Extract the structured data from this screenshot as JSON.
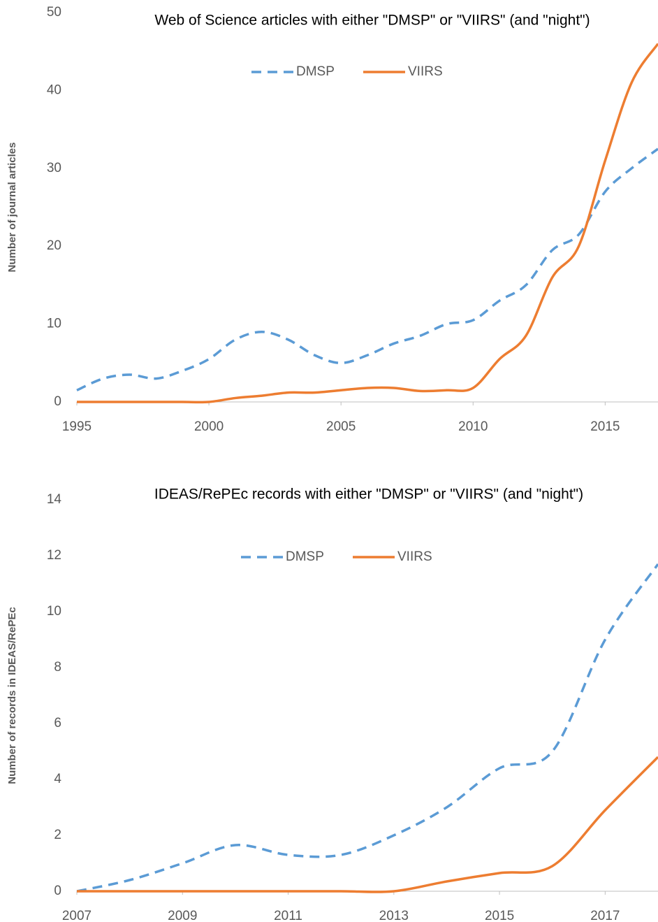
{
  "chart_data": [
    {
      "type": "line",
      "title": "Web of Science articles with either \"DMSP\" or \"VIIRS\" (and \"night\")",
      "y_label": "Number of journal articles",
      "x": [
        1995,
        1996,
        1997,
        1998,
        1999,
        2000,
        2001,
        2002,
        2003,
        2004,
        2005,
        2006,
        2007,
        2008,
        2009,
        2010,
        2011,
        2012,
        2013,
        2014,
        2015,
        2016,
        2017
      ],
      "series": [
        {
          "name": "DMSP",
          "color": "#5b9bd5",
          "dashed": true,
          "values": [
            1.5,
            3,
            3.5,
            3,
            4,
            5.5,
            8,
            9,
            8,
            6,
            5,
            6,
            7.5,
            8.5,
            10,
            10.5,
            13,
            15,
            19.5,
            21.5,
            27,
            30,
            32.5
          ]
        },
        {
          "name": "VIIRS",
          "color": "#ed7d31",
          "dashed": false,
          "values": [
            0,
            0,
            0,
            0,
            0,
            0,
            0.5,
            0.8,
            1.2,
            1.2,
            1.5,
            1.8,
            1.8,
            1.4,
            1.5,
            1.8,
            5.5,
            8.5,
            16,
            20,
            31,
            41,
            46
          ]
        }
      ],
      "xlim": [
        1995,
        2017
      ],
      "xticks": [
        1995,
        2000,
        2005,
        2010,
        2015
      ],
      "ylim": [
        0,
        50
      ],
      "yticks": [
        0,
        10,
        20,
        30,
        40,
        50
      ],
      "grid": false
    },
    {
      "type": "line",
      "title": "IDEAS/RePEc records with either \"DMSP\" or \"VIIRS\" (and \"night\")",
      "y_label": "Number of records in IDEAS/RePEc",
      "x": [
        2007,
        2008,
        2009,
        2010,
        2011,
        2012,
        2013,
        2014,
        2015,
        2016,
        2017,
        2018
      ],
      "series": [
        {
          "name": "DMSP",
          "color": "#5b9bd5",
          "dashed": true,
          "values": [
            0,
            0.4,
            1,
            1.65,
            1.3,
            1.3,
            2,
            3,
            4.4,
            5,
            9,
            11.7
          ]
        },
        {
          "name": "VIIRS",
          "color": "#ed7d31",
          "dashed": false,
          "values": [
            0,
            0,
            0,
            0,
            0,
            0,
            0,
            0.35,
            0.65,
            0.9,
            2.9,
            4.8
          ]
        }
      ],
      "xlim": [
        2007,
        2018
      ],
      "xticks": [
        2007,
        2009,
        2011,
        2013,
        2015,
        2017
      ],
      "ylim": [
        0,
        14
      ],
      "yticks": [
        0,
        2,
        4,
        6,
        8,
        10,
        12,
        14
      ],
      "grid": false
    }
  ]
}
